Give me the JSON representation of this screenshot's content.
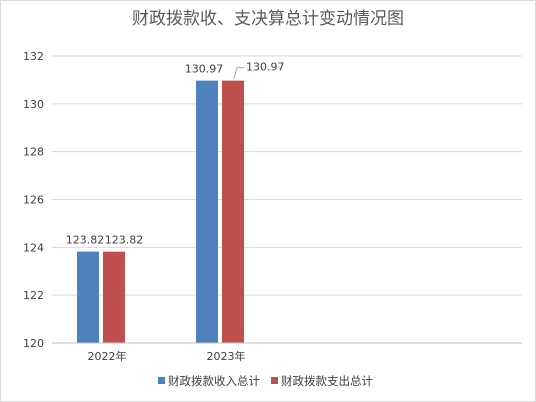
{
  "chart_data": {
    "type": "bar",
    "title": "财政拨款收、支决算总计变动情况图",
    "categories": [
      "2022年",
      "2023年"
    ],
    "series": [
      {
        "name": "财政拨款收入总计",
        "color": "#4f81bd",
        "values": [
          123.82,
          130.97
        ],
        "labels": [
          "123.82",
          "130.97"
        ]
      },
      {
        "name": "财政拨款支出总计",
        "color": "#c0504d",
        "values": [
          123.82,
          130.97
        ],
        "labels": [
          "123.82",
          "130.97"
        ]
      }
    ],
    "ylim": [
      120,
      132
    ],
    "yticks": [
      "120",
      "122",
      "124",
      "126",
      "128",
      "130",
      "132"
    ],
    "grid": true,
    "legend_position": "bottom"
  }
}
